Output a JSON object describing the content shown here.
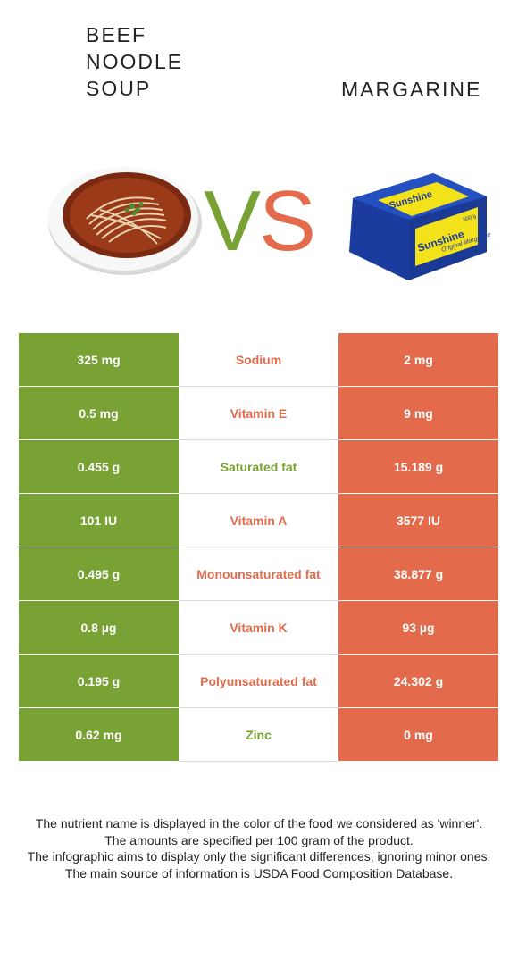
{
  "left_food": {
    "title": "BEEF NOODLE SOUP"
  },
  "right_food": {
    "title": "MARGARINE"
  },
  "vs_label": "VS",
  "colors": {
    "left": "#79a234",
    "right": "#e36b4b"
  },
  "rows": [
    {
      "nutrient": "Sodium",
      "left": "325 mg",
      "right": "2 mg",
      "winner": "right"
    },
    {
      "nutrient": "Vitamin E",
      "left": "0.5 mg",
      "right": "9 mg",
      "winner": "right"
    },
    {
      "nutrient": "Saturated fat",
      "left": "0.455 g",
      "right": "15.189 g",
      "winner": "left"
    },
    {
      "nutrient": "Vitamin A",
      "left": "101 IU",
      "right": "3577 IU",
      "winner": "right"
    },
    {
      "nutrient": "Monounsaturated fat",
      "left": "0.495 g",
      "right": "38.877 g",
      "winner": "right"
    },
    {
      "nutrient": "Vitamin K",
      "left": "0.8 µg",
      "right": "93 µg",
      "winner": "right"
    },
    {
      "nutrient": "Polyunsaturated fat",
      "left": "0.195 g",
      "right": "24.302 g",
      "winner": "right"
    },
    {
      "nutrient": "Zinc",
      "left": "0.62 mg",
      "right": "0 mg",
      "winner": "left"
    }
  ],
  "footer": [
    "The nutrient name is displayed in the color of the food we considered as 'winner'.",
    "The amounts are specified per 100 gram of the product.",
    "The infographic aims to display only the significant differences, ignoring minor ones.",
    "The main source of information is USDA Food Composition Database."
  ],
  "margarine_pack": {
    "brand": "Sunshine",
    "product": "Original Margarine",
    "weight": "500 g"
  }
}
